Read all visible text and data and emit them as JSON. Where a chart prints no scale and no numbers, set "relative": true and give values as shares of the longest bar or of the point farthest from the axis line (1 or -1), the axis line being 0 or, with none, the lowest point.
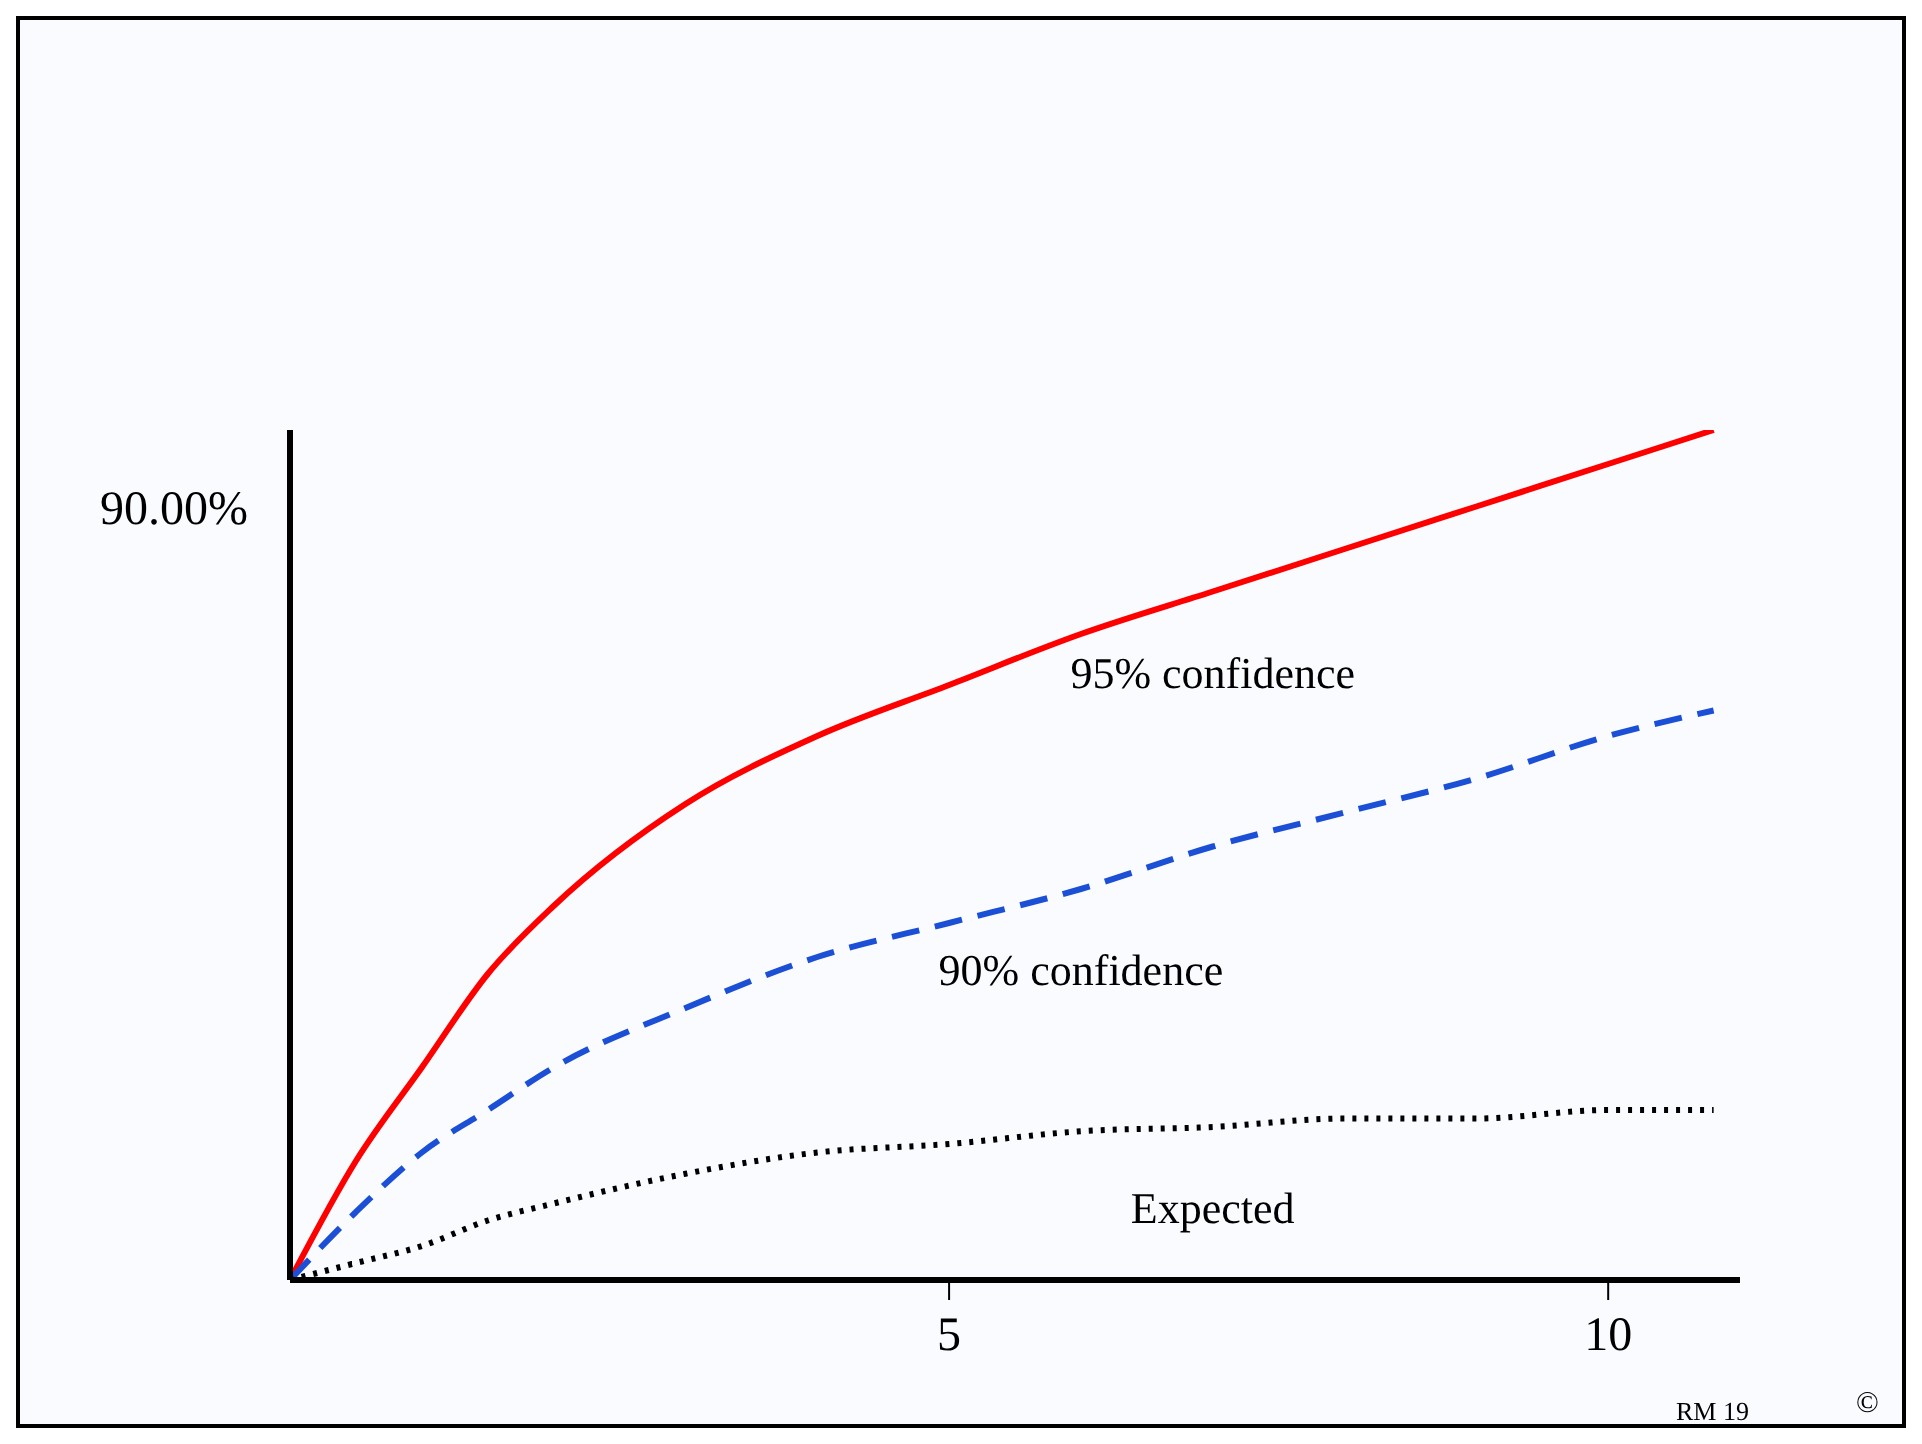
{
  "chart_data": {
    "type": "line",
    "relative": true,
    "x": [
      0,
      0.5,
      1,
      1.5,
      2,
      3,
      4,
      5,
      6,
      7,
      8,
      9,
      10,
      10.8
    ],
    "xlim": [
      0,
      11
    ],
    "xticks": [
      5,
      10
    ],
    "marker": "none",
    "series": [
      {
        "name": "95% confidence",
        "color": "#ff0000",
        "line_style": "solid",
        "values": [
          0,
          0.14,
          0.25,
          0.36,
          0.44,
          0.56,
          0.64,
          0.7,
          0.76,
          0.81,
          0.86,
          0.91,
          0.96,
          1
        ]
      },
      {
        "name": "90% confidence",
        "color": "#1a4fd6",
        "line_style": "dashed",
        "values": [
          0,
          0.08,
          0.15,
          0.2,
          0.25,
          0.32,
          0.38,
          0.42,
          0.46,
          0.51,
          0.55,
          0.59,
          0.64,
          0.67
        ]
      },
      {
        "name": "Expected",
        "color": "#000000",
        "line_style": "dotted",
        "values": [
          0,
          0.02,
          0.04,
          0.07,
          0.09,
          0.125,
          0.15,
          0.16,
          0.175,
          0.18,
          0.19,
          0.19,
          0.2,
          0.2
        ]
      }
    ],
    "annotations": [
      "90.00%",
      "RM  19",
      "©"
    ]
  }
}
